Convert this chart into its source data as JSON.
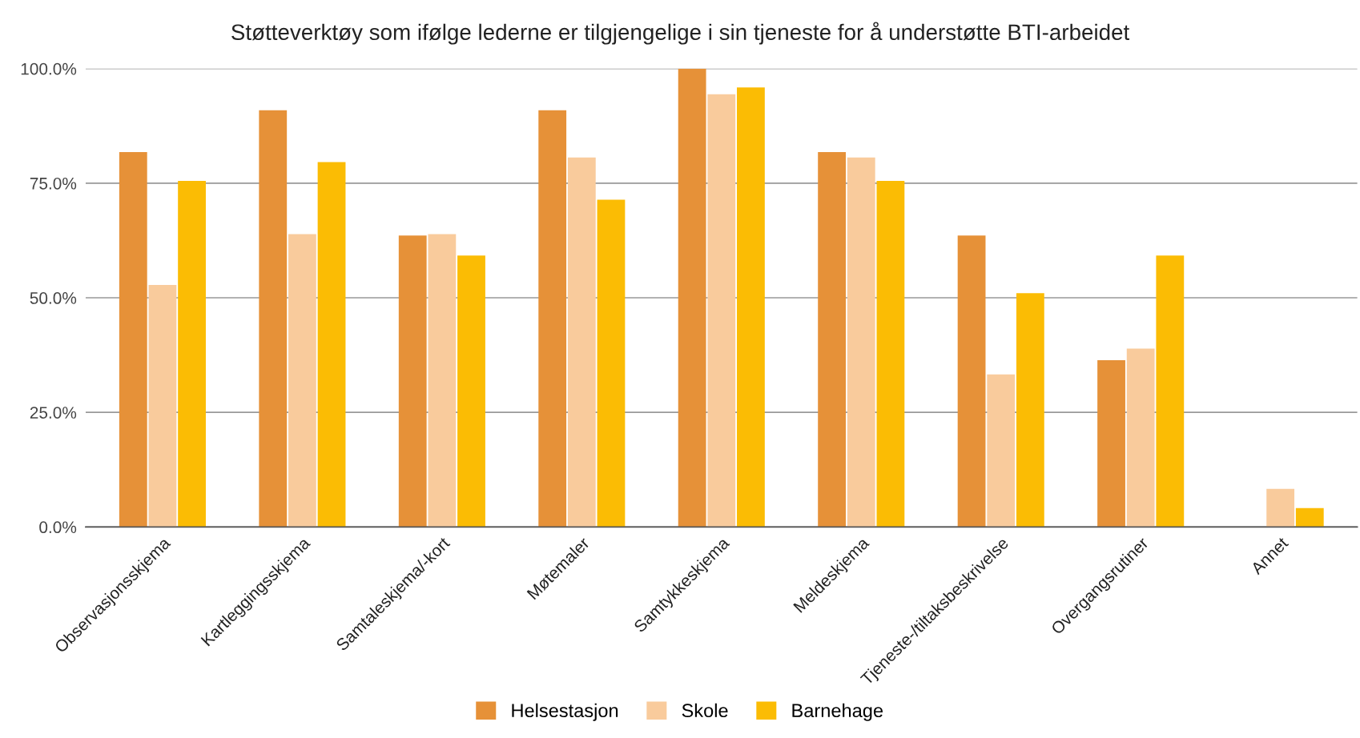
{
  "chart_data": {
    "type": "bar",
    "title": "Støtteverktøy som ifølge lederne er tilgjengelige i sin tjeneste for å understøtte BTI-arbeidet",
    "categories": [
      "Observasjonsskjema",
      "Kartleggingsskjema",
      "Samtaleskjema/-kort",
      "Møtemaler",
      "Samtykkeskjema",
      "Meldeskjema",
      "Tjeneste-/tiltaksbeskrivelse",
      "Overgangsrutiner",
      "Annet"
    ],
    "series": [
      {
        "name": "Helsestasjon",
        "color": "#e69138",
        "values": [
          81.8,
          90.9,
          63.6,
          90.9,
          100,
          81.8,
          63.6,
          36.4,
          0
        ]
      },
      {
        "name": "Skole",
        "color": "#f9cb9c",
        "values": [
          52.8,
          63.9,
          63.9,
          80.6,
          94.4,
          80.6,
          33.3,
          38.9,
          8.3
        ]
      },
      {
        "name": "Barnehage",
        "color": "#fbbc04",
        "values": [
          75.5,
          79.6,
          59.2,
          71.4,
          95.9,
          75.5,
          51.0,
          59.2,
          4.1
        ]
      }
    ],
    "ylim": [
      0,
      100
    ],
    "yticks": [
      {
        "value": 0,
        "label": "0.0%"
      },
      {
        "value": 25,
        "label": "25.0%"
      },
      {
        "value": 50,
        "label": "50.0%"
      },
      {
        "value": 75,
        "label": "75.0%"
      },
      {
        "value": 100,
        "label": "100.0%"
      }
    ],
    "grid": "y",
    "legend": "bottom"
  }
}
